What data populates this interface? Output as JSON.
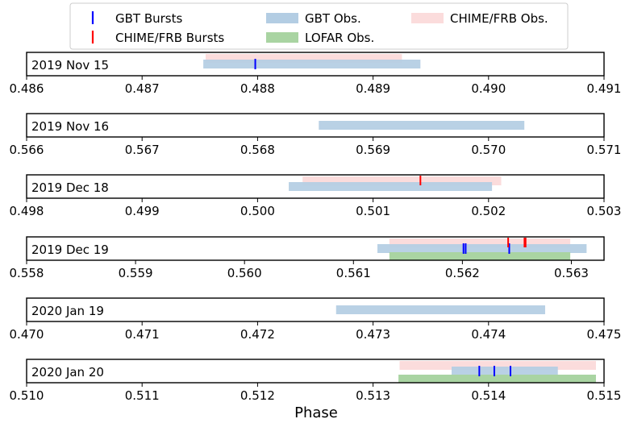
{
  "chart_data": {
    "type": "timeline",
    "xlabel": "Phase",
    "colors": {
      "gbt_burst": "#0000ff",
      "chime_burst": "#ff0000",
      "gbt_obs": "#b3cde3",
      "lofar_obs": "#a9d4a2",
      "chime_obs": "#fbdcdc"
    },
    "legend": {
      "placement": "top",
      "entries": [
        {
          "key": "gbt_burst",
          "label": "GBT Bursts",
          "style": "tick"
        },
        {
          "key": "chime_burst",
          "label": "CHIME/FRB Bursts",
          "style": "tick"
        },
        {
          "key": "gbt_obs",
          "label": "GBT Obs.",
          "style": "band"
        },
        {
          "key": "lofar_obs",
          "label": "LOFAR Obs.",
          "style": "band"
        },
        {
          "key": "chime_obs",
          "label": "CHIME/FRB Obs.",
          "style": "band"
        }
      ]
    },
    "panels": [
      {
        "label": "2019 Nov 15",
        "xlim": [
          0.486,
          0.491
        ],
        "ticks": [
          "0.486",
          "0.487",
          "0.488",
          "0.489",
          "0.490",
          "0.491"
        ],
        "chime_obs": [
          0.48755,
          0.48925
        ],
        "gbt_obs": [
          0.48753,
          0.48941
        ],
        "lofar_obs": null,
        "gbt_bursts": [
          0.48798
        ],
        "chime_bursts": []
      },
      {
        "label": "2019 Nov 16",
        "xlim": [
          0.566,
          0.571
        ],
        "ticks": [
          "0.566",
          "0.567",
          "0.568",
          "0.569",
          "0.570",
          "0.571"
        ],
        "chime_obs": null,
        "gbt_obs": [
          0.56853,
          0.57031
        ],
        "lofar_obs": null,
        "gbt_bursts": [],
        "chime_bursts": []
      },
      {
        "label": "2019 Dec 18",
        "xlim": [
          0.498,
          0.503
        ],
        "ticks": [
          "0.498",
          "0.499",
          "0.500",
          "0.501",
          "0.502",
          "0.503"
        ],
        "chime_obs": [
          0.50039,
          0.50211
        ],
        "gbt_obs": [
          0.50027,
          0.50203
        ],
        "lofar_obs": null,
        "gbt_bursts": [],
        "chime_bursts": [
          0.50141
        ]
      },
      {
        "label": "2019 Dec 19",
        "xlim": [
          0.558,
          0.5633
        ],
        "ticks": [
          "0.558",
          "0.559",
          "0.560",
          "0.561",
          "0.562",
          "0.563"
        ],
        "chime_obs": [
          0.56133,
          0.56299
        ],
        "gbt_obs": [
          0.56122,
          0.56314
        ],
        "lofar_obs": [
          0.56133,
          0.56299
        ],
        "gbt_bursts": [
          0.56201,
          0.56203,
          0.56243
        ],
        "chime_bursts": [
          0.56242,
          0.56257,
          0.56258
        ]
      },
      {
        "label": "2020 Jan 19",
        "xlim": [
          0.47,
          0.475
        ],
        "ticks": [
          "0.470",
          "0.471",
          "0.472",
          "0.473",
          "0.474",
          "0.475"
        ],
        "chime_obs": null,
        "gbt_obs": [
          0.47268,
          0.47449
        ],
        "lofar_obs": null,
        "gbt_bursts": [],
        "chime_bursts": []
      },
      {
        "label": "2020 Jan 20",
        "xlim": [
          0.51,
          0.515
        ],
        "ticks": [
          "0.510",
          "0.511",
          "0.512",
          "0.513",
          "0.514",
          "0.515"
        ],
        "chime_obs": [
          0.51323,
          0.51493
        ],
        "gbt_obs": [
          0.51368,
          0.5146
        ],
        "lofar_obs": [
          0.51322,
          0.51493
        ],
        "gbt_bursts": [
          0.51392,
          0.51405,
          0.51419
        ],
        "chime_bursts": []
      }
    ]
  }
}
